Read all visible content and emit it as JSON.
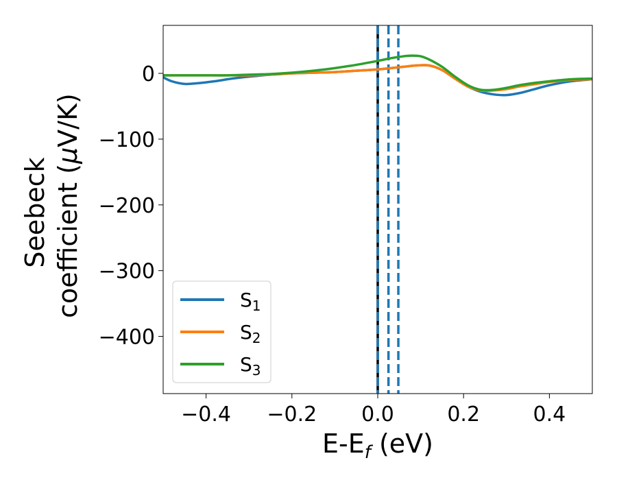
{
  "chart_data": {
    "type": "line",
    "xlabel": {
      "base": "E-E",
      "sub": "f",
      "suffix": " (eV)"
    },
    "ylabel": {
      "line1": "Seebeck",
      "line2_pre": "coefficient  (",
      "line2_mu": "μ",
      "line2_post": "V/K)"
    },
    "xlim": [
      -0.5,
      0.5
    ],
    "ylim": [
      -487,
      73
    ],
    "xticks": [
      {
        "value": -0.4,
        "label": "−0.4"
      },
      {
        "value": -0.2,
        "label": "−0.2"
      },
      {
        "value": 0.0,
        "label": "0.0"
      },
      {
        "value": 0.2,
        "label": "0.2"
      },
      {
        "value": 0.4,
        "label": "0.4"
      }
    ],
    "yticks": [
      {
        "value": 0,
        "label": "0"
      },
      {
        "value": -100,
        "label": "−100"
      },
      {
        "value": -200,
        "label": "−200"
      },
      {
        "value": -300,
        "label": "−300"
      },
      {
        "value": -400,
        "label": "−400"
      }
    ],
    "legend_position": "lower-left",
    "series": [
      {
        "name": {
          "base": "S",
          "sub": "1"
        },
        "color": "#1f77b4",
        "x": [
          -0.5,
          -0.48,
          -0.45,
          -0.42,
          -0.38,
          -0.34,
          -0.3,
          -0.25,
          -0.2,
          -0.15,
          -0.1,
          -0.05,
          0.0,
          0.03,
          0.06,
          0.09,
          0.12,
          0.15,
          0.18,
          0.21,
          0.24,
          0.27,
          0.3,
          0.33,
          0.36,
          0.4,
          0.45,
          0.5
        ],
        "y": [
          -6,
          -12,
          -16,
          -15,
          -12,
          -8,
          -5,
          -2,
          0,
          1,
          2,
          4,
          6,
          8,
          10,
          12,
          12,
          5,
          -8,
          -20,
          -28,
          -32,
          -33,
          -30,
          -25,
          -18,
          -12,
          -9
        ]
      },
      {
        "name": {
          "base": "S",
          "sub": "2"
        },
        "color": "#ff7f0e",
        "x": [
          -0.5,
          -0.45,
          -0.4,
          -0.35,
          -0.3,
          -0.25,
          -0.2,
          -0.15,
          -0.1,
          -0.05,
          0.0,
          0.03,
          0.06,
          0.09,
          0.12,
          0.15,
          0.18,
          0.21,
          0.24,
          0.27,
          0.3,
          0.33,
          0.36,
          0.4,
          0.45,
          0.5
        ],
        "y": [
          -3,
          -3,
          -3,
          -3,
          -3,
          -2,
          0,
          1,
          2,
          4,
          6,
          8,
          10,
          12,
          12,
          5,
          -8,
          -20,
          -26,
          -26,
          -24,
          -20,
          -17,
          -13,
          -10,
          -9
        ]
      },
      {
        "name": {
          "base": "S",
          "sub": "3"
        },
        "color": "#2ca02c",
        "x": [
          -0.5,
          -0.45,
          -0.4,
          -0.35,
          -0.3,
          -0.25,
          -0.2,
          -0.15,
          -0.1,
          -0.05,
          0.0,
          0.03,
          0.06,
          0.08,
          0.1,
          0.12,
          0.15,
          0.18,
          0.21,
          0.24,
          0.27,
          0.3,
          0.33,
          0.36,
          0.4,
          0.45,
          0.5
        ],
        "y": [
          -3,
          -3,
          -3,
          -3,
          -2,
          -1,
          1,
          4,
          8,
          13,
          19,
          23,
          26,
          27,
          26,
          21,
          10,
          -5,
          -18,
          -25,
          -25,
          -22,
          -18,
          -15,
          -12,
          -9,
          -8
        ]
      }
    ],
    "vlines": [
      {
        "x": 0.0,
        "style": "solid",
        "color": "#000000"
      },
      {
        "x": 0.0,
        "style": "dashed",
        "color": "#1f77b4"
      },
      {
        "x": 0.025,
        "style": "dashed",
        "color": "#1f77b4"
      },
      {
        "x": 0.048,
        "style": "dashed",
        "color": "#1f77b4"
      }
    ]
  }
}
